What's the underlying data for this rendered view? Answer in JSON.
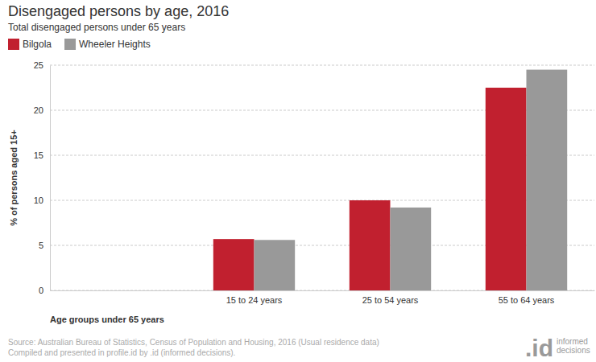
{
  "chart_data": {
    "type": "bar",
    "title": "Disengaged persons by age, 2016",
    "subtitle": "Total disengaged persons under 65 years",
    "x_label": "Age groups under 65 years",
    "y_label": "% of persons aged 15+",
    "categories": [
      null,
      "15 to 24 years",
      "25 to 54 years",
      "55 to 64 years"
    ],
    "series": [
      {
        "name": "Bilgola",
        "color": "#c1202f",
        "values": [
          null,
          5.7,
          10.0,
          22.5
        ]
      },
      {
        "name": "Wheeler Heights",
        "color": "#999999",
        "values": [
          null,
          5.6,
          9.2,
          24.5
        ]
      }
    ],
    "ylim": [
      0,
      25
    ],
    "yticks": [
      0,
      5,
      10,
      15,
      20,
      25
    ],
    "grid": true,
    "legend": "top-left",
    "source": [
      "Source: Australian Bureau of Statistics, Census of Population and Housing, 2016 (Usual residence data)",
      "Compiled and presented in profile.id by .id (informed decisions)."
    ],
    "logo": ".id",
    "logo_text": "informed decisions"
  }
}
